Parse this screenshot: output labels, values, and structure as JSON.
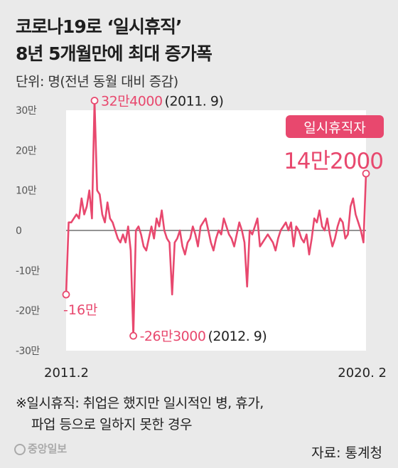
{
  "header": {
    "title_line1": "코로나19로 ‘일시휴직’",
    "title_line2": "8년 5개월만에 최대 증가폭",
    "unit": "단위: 명(전년 동월 대비 증감)"
  },
  "footer": {
    "note_line1": "※일시휴직: 취업은 했지만 일시적인 병, 휴가,",
    "note_line2": "파업 등으로 일하지 못한 경우",
    "logo": "중앙일보",
    "source": "자료: 통계청"
  },
  "colors": {
    "line": "#e8486e",
    "plot_bg": "#ffffff",
    "page_bg": "#eaeaea",
    "badge": "#e8486e",
    "zero_line": "#555555"
  },
  "chart_data": {
    "type": "line",
    "ylim": [
      -30,
      30
    ],
    "yticks": [
      {
        "value": 30,
        "label": "30만"
      },
      {
        "value": 20,
        "label": "20만"
      },
      {
        "value": 10,
        "label": "10만"
      },
      {
        "value": 0,
        "label": "0"
      },
      {
        "value": -10,
        "label": "-10만"
      },
      {
        "value": -20,
        "label": "-20만"
      },
      {
        "value": -30,
        "label": "-30만"
      }
    ],
    "xticks": [
      "2011.2",
      "2020. 2"
    ],
    "series": [
      {
        "values": [
          -16,
          2,
          2,
          3,
          4,
          3,
          8,
          4,
          6,
          10,
          3,
          32.4,
          10,
          9,
          4,
          2,
          7,
          3,
          2,
          0,
          -2,
          -3,
          -1,
          -3,
          1,
          -5,
          -26.3,
          0,
          1,
          -1,
          -4,
          -5,
          -2,
          1,
          -2,
          3,
          1,
          5,
          0,
          -2,
          -3,
          -16,
          -3,
          -2,
          0,
          -4,
          -6,
          -3,
          -2,
          1,
          -1,
          -4,
          1,
          2,
          3,
          0,
          -3,
          -5,
          -2,
          0,
          -1,
          3,
          1,
          -1,
          -2,
          -4,
          -1,
          2,
          0,
          -3,
          -14,
          0,
          -1,
          1,
          3,
          -4,
          -3,
          -2,
          -1,
          -2,
          -3,
          -5,
          -2,
          0,
          1,
          2,
          0,
          2,
          -4,
          1,
          0,
          -2,
          -3,
          -1,
          -6,
          -2,
          3,
          2,
          5,
          1,
          0,
          3,
          -1,
          -4,
          -2,
          1,
          3,
          2,
          -2,
          -1,
          6,
          8,
          4,
          2,
          0,
          -3,
          14.2
        ]
      }
    ],
    "annotations": [
      {
        "label": "32만4000",
        "suffix": "(2011. 9)",
        "value": 32.4
      },
      {
        "label": "-16만",
        "value": -16
      },
      {
        "label": "-26만3000",
        "suffix": "(2012. 9)",
        "value": -26.3
      },
      {
        "badge": "일시휴직자",
        "label": "14만2000",
        "value": 14.2
      }
    ]
  }
}
